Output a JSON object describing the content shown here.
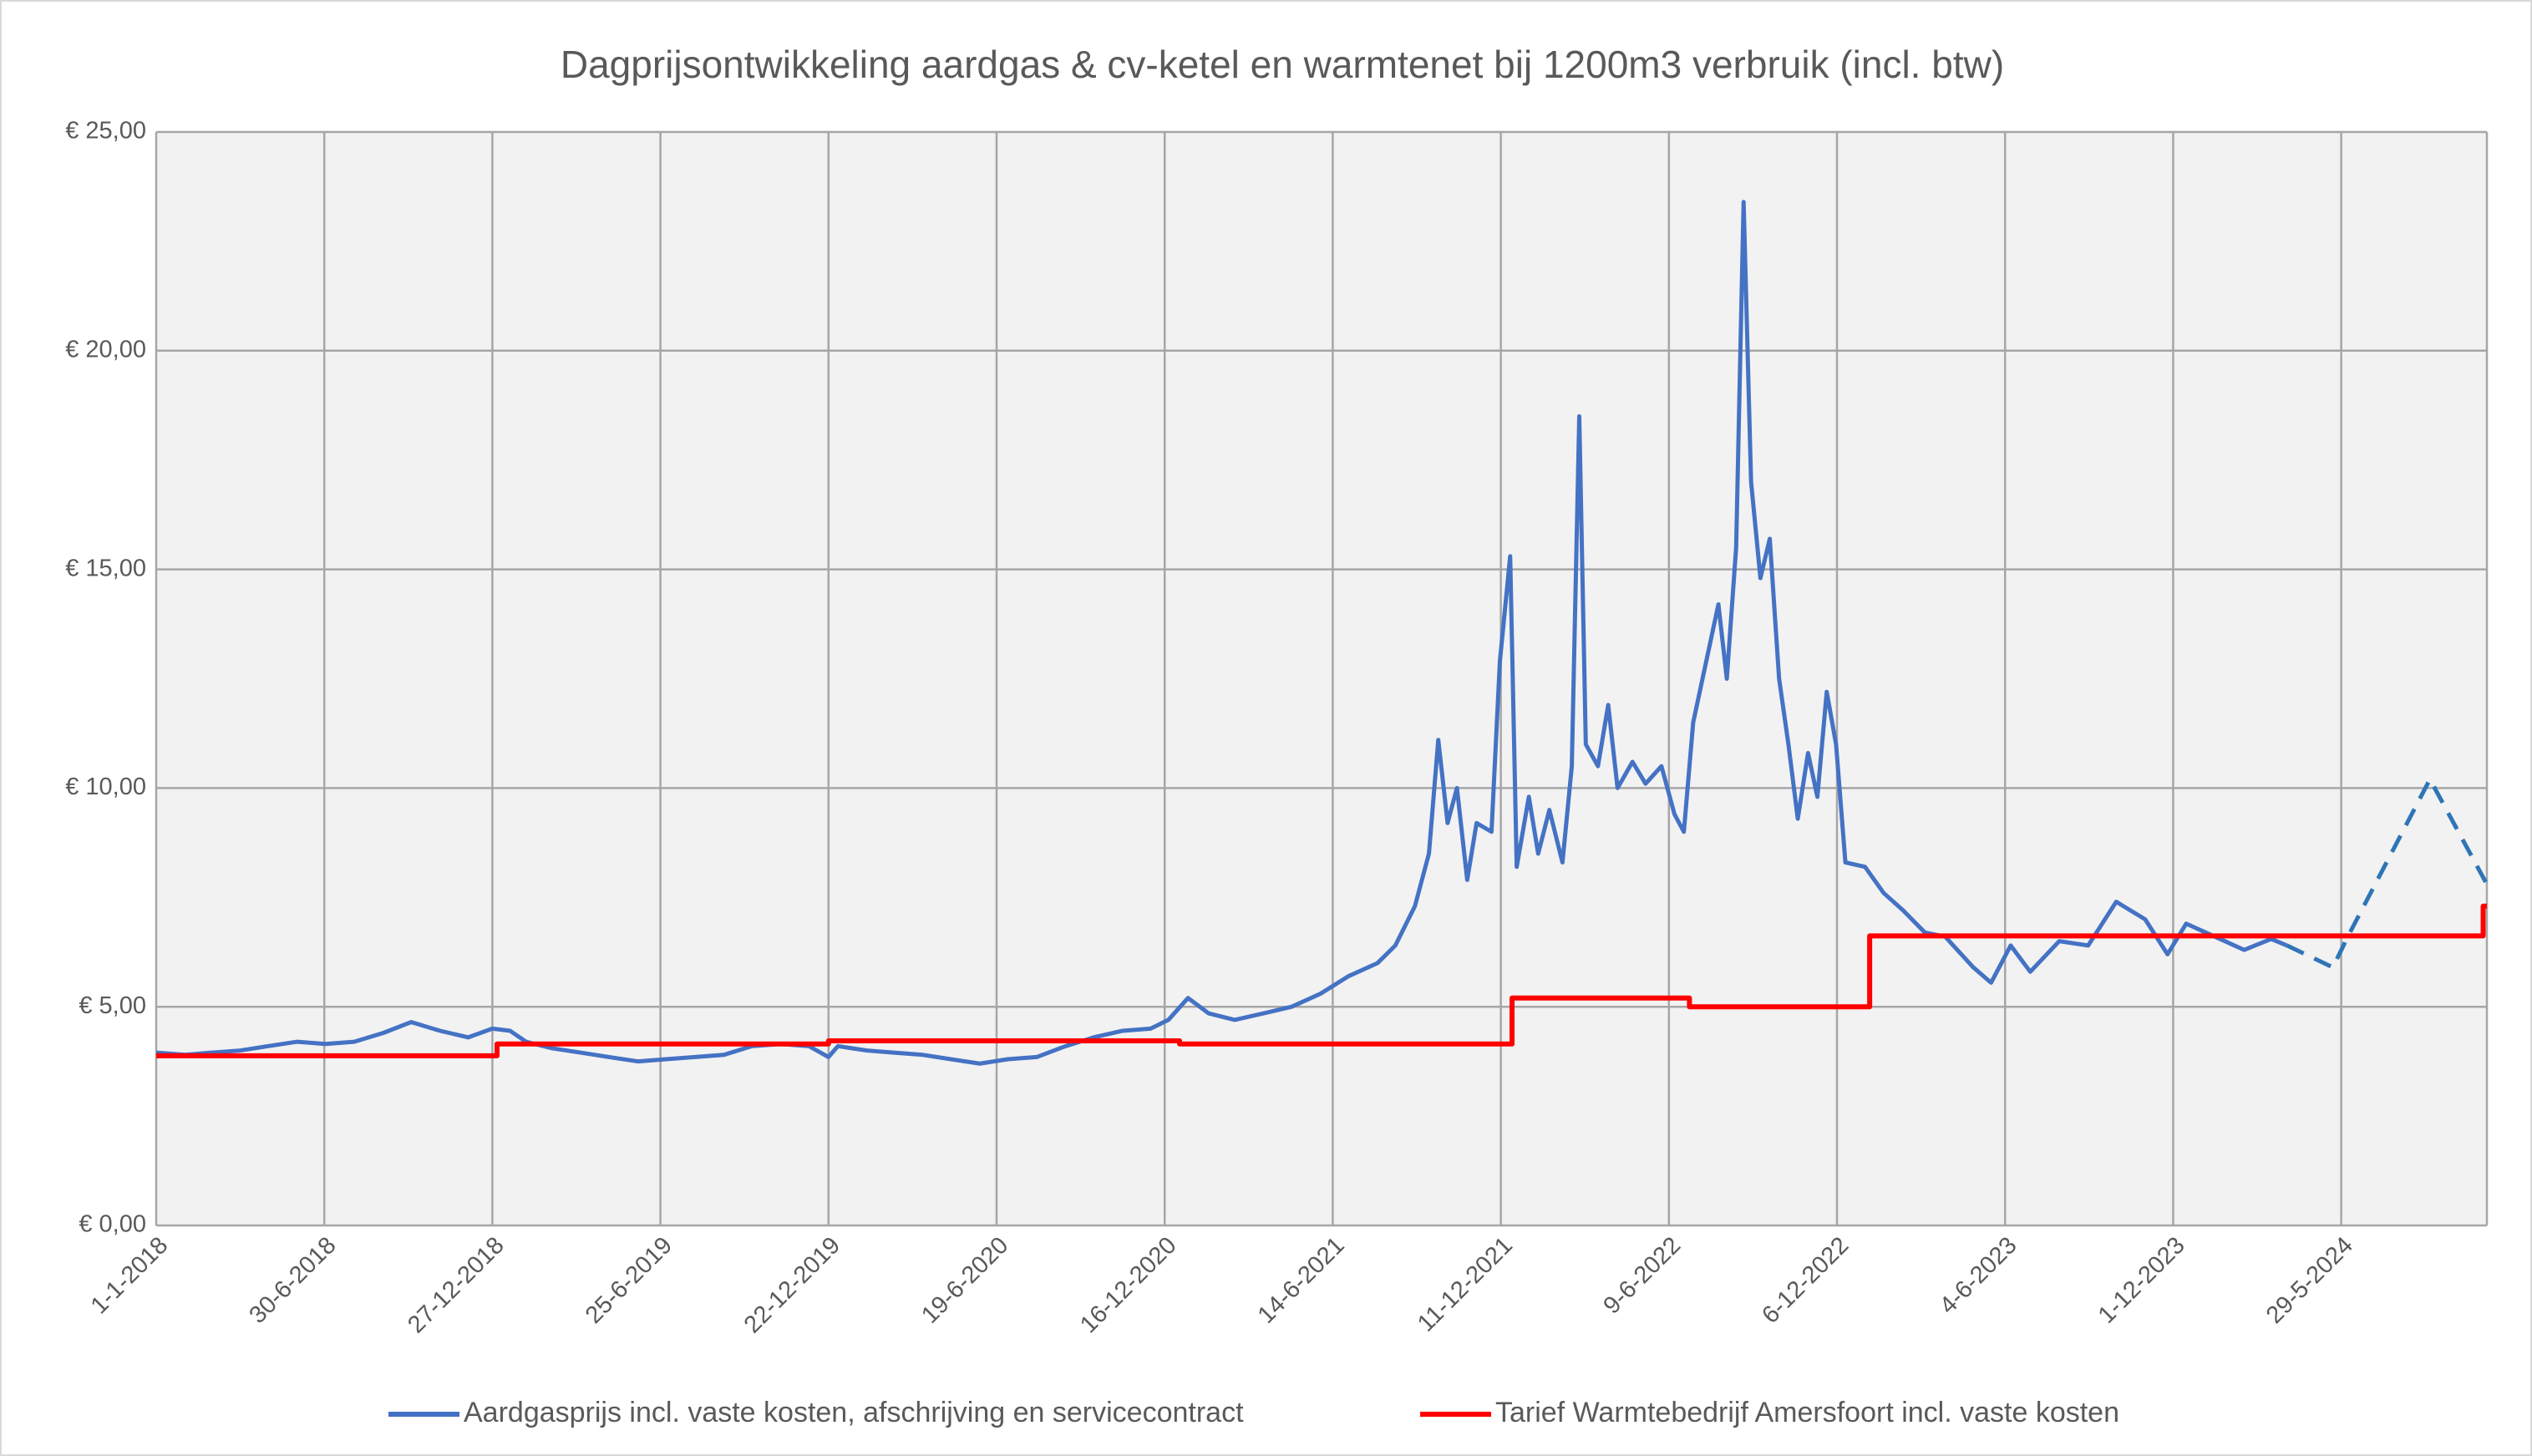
{
  "chart_data": {
    "type": "line",
    "title": "Dagprijsontwikkeling aardgas & cv-ketel en warmtenet bij 1200m3 verbruik (incl. btw)",
    "xlim": [
      "2018-01-01",
      "2024-11-01"
    ],
    "xticks": [
      {
        "value": "2018-01-01",
        "label": "1-1-2018"
      },
      {
        "value": "2018-06-30",
        "label": "30-6-2018"
      },
      {
        "value": "2018-12-27",
        "label": "27-12-2018"
      },
      {
        "value": "2019-06-25",
        "label": "25-6-2019"
      },
      {
        "value": "2019-12-22",
        "label": "22-12-2019"
      },
      {
        "value": "2020-06-19",
        "label": "19-6-2020"
      },
      {
        "value": "2020-12-16",
        "label": "16-12-2020"
      },
      {
        "value": "2021-06-14",
        "label": "14-6-2021"
      },
      {
        "value": "2021-12-11",
        "label": "11-12-2021"
      },
      {
        "value": "2022-06-09",
        "label": "9-6-2022"
      },
      {
        "value": "2022-12-06",
        "label": "6-12-2022"
      },
      {
        "value": "2023-06-04",
        "label": "4-6-2023"
      },
      {
        "value": "2023-12-01",
        "label": "1-12-2023"
      },
      {
        "value": "2024-05-29",
        "label": "29-5-2024"
      }
    ],
    "ylim": [
      0,
      25
    ],
    "yticks": [
      {
        "value": 0,
        "label": "€ 0,00"
      },
      {
        "value": 5,
        "label": "€ 5,00"
      },
      {
        "value": 10,
        "label": "€ 10,00"
      },
      {
        "value": 15,
        "label": "€ 15,00"
      },
      {
        "value": 20,
        "label": "€ 20,00"
      },
      {
        "value": 25,
        "label": "€ 25,00"
      }
    ],
    "grid": true,
    "legend": "bottom",
    "series": [
      {
        "name": "Aardgasprijs incl. vaste kosten, afschrijving en servicecontract",
        "color": "#4472c4",
        "x": [
          "2018-01-01",
          "2018-02-01",
          "2018-03-01",
          "2018-04-01",
          "2018-05-01",
          "2018-06-01",
          "2018-07-01",
          "2018-08-01",
          "2018-09-01",
          "2018-10-01",
          "2018-11-01",
          "2018-12-01",
          "2018-12-27",
          "2019-01-15",
          "2019-02-01",
          "2019-03-01",
          "2019-04-01",
          "2019-05-01",
          "2019-06-01",
          "2019-07-01",
          "2019-08-01",
          "2019-09-01",
          "2019-10-01",
          "2019-11-01",
          "2019-12-01",
          "2019-12-22",
          "2020-01-01",
          "2020-02-01",
          "2020-03-01",
          "2020-04-01",
          "2020-05-01",
          "2020-06-01",
          "2020-07-01",
          "2020-08-01",
          "2020-09-01",
          "2020-10-01",
          "2020-11-01",
          "2020-12-01",
          "2020-12-20",
          "2021-01-10",
          "2021-02-01",
          "2021-03-01",
          "2021-04-01",
          "2021-05-01",
          "2021-06-01",
          "2021-07-01",
          "2021-08-01",
          "2021-08-20",
          "2021-09-10",
          "2021-09-25",
          "2021-10-05",
          "2021-10-15",
          "2021-10-25",
          "2021-11-05",
          "2021-11-15",
          "2021-12-01",
          "2021-12-10",
          "2021-12-21",
          "2021-12-28",
          "2022-01-10",
          "2022-01-20",
          "2022-02-01",
          "2022-02-15",
          "2022-02-25",
          "2022-03-05",
          "2022-03-12",
          "2022-03-25",
          "2022-04-05",
          "2022-04-15",
          "2022-05-01",
          "2022-05-15",
          "2022-06-01",
          "2022-06-15",
          "2022-06-25",
          "2022-07-05",
          "2022-07-20",
          "2022-08-01",
          "2022-08-10",
          "2022-08-20",
          "2022-08-28",
          "2022-09-05",
          "2022-09-15",
          "2022-09-25",
          "2022-10-05",
          "2022-10-15",
          "2022-10-25",
          "2022-11-05",
          "2022-11-15",
          "2022-11-25",
          "2022-12-05",
          "2022-12-15",
          "2023-01-05",
          "2023-01-25",
          "2023-02-15",
          "2023-03-10",
          "2023-04-01",
          "2023-05-01",
          "2023-05-20",
          "2023-06-10",
          "2023-07-01",
          "2023-08-01",
          "2023-09-01",
          "2023-10-01",
          "2023-11-01",
          "2023-11-25",
          "2023-12-15",
          "2024-01-15",
          "2024-02-15",
          "2024-03-15",
          "2024-04-01"
        ],
        "values": [
          3.95,
          3.9,
          3.95,
          4.0,
          4.1,
          4.2,
          4.15,
          4.2,
          4.4,
          4.65,
          4.45,
          4.3,
          4.5,
          4.45,
          4.2,
          4.05,
          3.95,
          3.85,
          3.75,
          3.8,
          3.85,
          3.9,
          4.1,
          4.15,
          4.1,
          3.85,
          4.1,
          4.0,
          3.95,
          3.9,
          3.8,
          3.7,
          3.8,
          3.85,
          4.1,
          4.3,
          4.45,
          4.5,
          4.7,
          5.2,
          4.85,
          4.7,
          4.85,
          5.0,
          5.3,
          5.7,
          6.0,
          6.4,
          7.3,
          8.5,
          11.1,
          9.2,
          10.0,
          7.9,
          9.2,
          9.0,
          12.9,
          15.3,
          8.2,
          9.8,
          8.5,
          9.5,
          8.3,
          10.5,
          18.5,
          11.0,
          10.5,
          11.9,
          10.0,
          10.6,
          10.1,
          10.5,
          9.4,
          9.0,
          11.5,
          13.0,
          14.2,
          12.5,
          15.5,
          23.4,
          17.0,
          14.8,
          15.7,
          12.5,
          11.0,
          9.3,
          10.8,
          9.8,
          12.2,
          11.0,
          8.3,
          8.2,
          7.6,
          7.2,
          6.7,
          6.6,
          5.9,
          5.55,
          6.4,
          5.8,
          6.5,
          6.4,
          7.4,
          7.0,
          6.2,
          6.9,
          6.6,
          6.3,
          6.55,
          6.4
        ]
      },
      {
        "color": "#2e75b6",
        "dashed": true,
        "x": [
          "2024-04-01",
          "2024-05-20",
          "2024-06-05",
          "2024-09-01",
          "2024-11-01"
        ],
        "values": [
          6.4,
          5.9,
          6.6,
          10.2,
          7.8
        ]
      },
      {
        "name": "Tarief Warmtebedrijf Amersfoort incl. vaste kosten",
        "color": "#ff0000",
        "step": true,
        "x": [
          "2018-01-01",
          "2019-01-01",
          "2019-12-22",
          "2021-01-01",
          "2021-12-23",
          "2022-07-01",
          "2023-01-10",
          "2024-10-28"
        ],
        "values": [
          3.88,
          4.15,
          4.22,
          4.15,
          5.2,
          5.0,
          6.62,
          7.3
        ]
      }
    ]
  }
}
